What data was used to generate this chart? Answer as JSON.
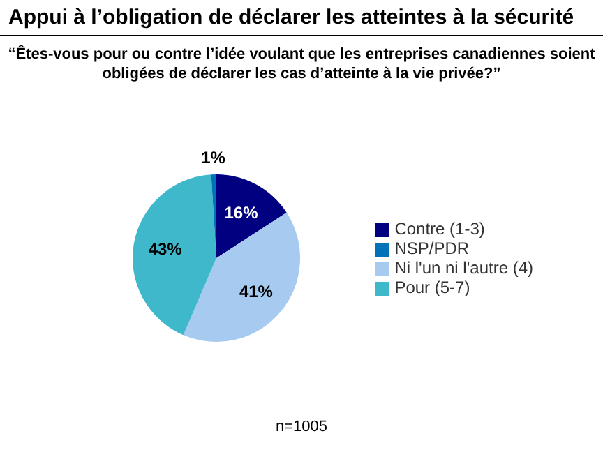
{
  "chart_data": {
    "type": "pie",
    "title": "Appui à l’obligation de déclarer les atteintes à la sécurité",
    "subtitle": "“Êtes-vous pour ou contre l’idée voulant que les entreprises canadiennes soient obligées de déclarer les cas d’atteinte à la vie privée?”",
    "categories": [
      "Contre (1-3)",
      "Ni l'un ni l'autre (4)",
      "Pour (5-7)",
      "NSP/PDR"
    ],
    "values": [
      16,
      41,
      43,
      1
    ],
    "colors": [
      "#000080",
      "#a6caf0",
      "#3fb8cc",
      "#0072b8"
    ],
    "value_labels": [
      "16%",
      "41%",
      "43%",
      "1%"
    ],
    "legend": "right",
    "annotations": [
      "n=1005"
    ]
  }
}
